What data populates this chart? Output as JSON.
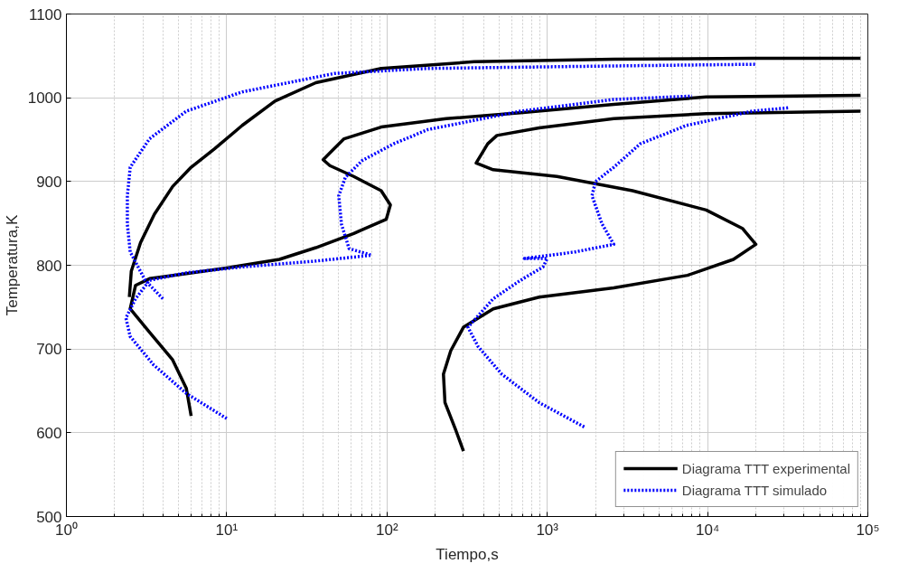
{
  "chart_data": {
    "type": "line",
    "xlabel": "Tiempo,s",
    "ylabel": "Temperatura,K",
    "log": "x",
    "grid": true,
    "legend": "bottom right",
    "xlim": [
      1,
      100000
    ],
    "xticks": [
      {
        "value": 1,
        "label": "10⁰"
      },
      {
        "value": 10,
        "label": "10¹"
      },
      {
        "value": 100,
        "label": "10²"
      },
      {
        "value": 1000,
        "label": "10³"
      },
      {
        "value": 10000,
        "label": "10⁴"
      },
      {
        "value": 100000,
        "label": "10⁵"
      }
    ],
    "ylim": [
      500,
      1100
    ],
    "yticks": [
      500,
      600,
      700,
      800,
      900,
      1000,
      1100
    ],
    "series": [
      {
        "name": "Diagrama TTT experimental",
        "color": "#000000",
        "line_style": "solid",
        "x": [
          2.47,
          2.54,
          2.9,
          3.54,
          4.6,
          6.0,
          8.4,
          12.5,
          20,
          36,
          92,
          350,
          2600,
          19000,
          90000
        ],
        "values": [
          762,
          793,
          827,
          861,
          894,
          917,
          939,
          967,
          996,
          1018,
          1035,
          1043,
          1046,
          1047,
          1047
        ]
      },
      {
        "color": "#000000",
        "line_style": "solid",
        "x": [
          6.0,
          5.6,
          4.6,
          3.3,
          2.5,
          2.7,
          3.3,
          5.6,
          11,
          21.3,
          36,
          62,
          99,
          105,
          92,
          62,
          44,
          40,
          44,
          54,
          92,
          234,
          680,
          2600,
          9800,
          90000
        ],
        "values": [
          620,
          653,
          687,
          720,
          748,
          776,
          784,
          790,
          798,
          807,
          821,
          838,
          855,
          872,
          889,
          906,
          919,
          926,
          934,
          951,
          965,
          975,
          982,
          992,
          1001,
          1003
        ]
      },
      {
        "color": "#000000",
        "line_style": "solid",
        "x": [
          300,
          270,
          230,
          225,
          250,
          300,
          460,
          890,
          2600,
          7500,
          14500,
          20000,
          16500,
          9800,
          3400,
          1150,
          460,
          360,
          425,
          485,
          890,
          2600,
          9800,
          90000
        ],
        "values": [
          578,
          602,
          636,
          670,
          698,
          726,
          748,
          762,
          773,
          788,
          807,
          825,
          844,
          866,
          889,
          906,
          914,
          922,
          945,
          955,
          964,
          975,
          981,
          984
        ]
      },
      {
        "name": "Diagrama TTT simulado",
        "color": "#0000ff",
        "line_style": "dotted",
        "x": [
          4.0,
          3.1,
          2.5,
          2.4,
          2.4,
          2.5,
          3.3,
          5.6,
          12.5,
          47,
          180,
          2600,
          20000
        ],
        "values": [
          760,
          782,
          816,
          849,
          883,
          917,
          951,
          984,
          1007,
          1029,
          1035,
          1038,
          1040
        ]
      },
      {
        "color": "#0000ff",
        "line_style": "dotted",
        "x": [
          10,
          5.6,
          3.5,
          2.5,
          2.35,
          2.7,
          3.3,
          5.6,
          12.5,
          36,
          80,
          58,
          52,
          50,
          55,
          70,
          110,
          180,
          680,
          2600,
          8000
        ],
        "values": [
          617,
          647,
          681,
          715,
          737,
          760,
          782,
          791,
          798,
          805,
          812,
          820,
          849,
          883,
          905,
          925,
          945,
          962,
          984,
          998,
          1002
        ]
      },
      {
        "color": "#0000ff",
        "line_style": "dotted",
        "x": [
          1700,
          890,
          520,
          370,
          320,
          460,
          680,
          940,
          1000,
          720,
          1500,
          2600,
          2200,
          1900,
          2000,
          2600,
          3800,
          7400,
          19000,
          32000
        ],
        "values": [
          607,
          636,
          670,
          703,
          726,
          760,
          782,
          798,
          808,
          808,
          816,
          825,
          849,
          883,
          900,
          917,
          945,
          967,
          984,
          988
        ]
      }
    ]
  }
}
